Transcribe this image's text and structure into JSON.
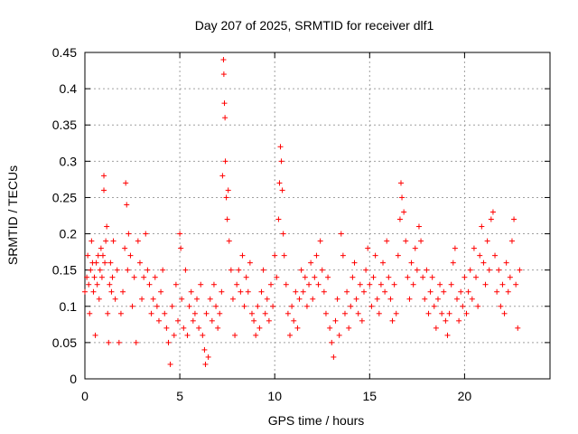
{
  "chart_data": {
    "type": "scatter",
    "title": "Day 207 of 2025, SRMTID for receiver dlf1",
    "xlabel": "GPS time / hours",
    "ylabel": "SRMTID / TECUs",
    "xlim": [
      0,
      24.5
    ],
    "ylim": [
      0,
      0.45
    ],
    "xticks": [
      0,
      5,
      10,
      15,
      20
    ],
    "xtick_labels": [
      "0",
      "5",
      "10",
      "15",
      "20"
    ],
    "yticks": [
      0,
      0.05,
      0.1,
      0.15,
      0.2,
      0.25,
      0.3,
      0.35,
      0.4,
      0.45
    ],
    "ytick_labels": [
      "0",
      "0.05",
      "0.1",
      "0.15",
      "0.2",
      "0.25",
      "0.3",
      "0.35",
      "0.4",
      "0.45"
    ],
    "grid": true,
    "marker": "plus",
    "color": "#ff0000",
    "series": [
      {
        "name": "SRMTID",
        "points": [
          [
            0.0,
            0.12
          ],
          [
            0.1,
            0.14
          ],
          [
            0.15,
            0.17
          ],
          [
            0.2,
            0.13
          ],
          [
            0.25,
            0.09
          ],
          [
            0.3,
            0.15
          ],
          [
            0.35,
            0.19
          ],
          [
            0.4,
            0.16
          ],
          [
            0.45,
            0.12
          ],
          [
            0.5,
            0.14
          ],
          [
            0.55,
            0.06
          ],
          [
            0.6,
            0.16
          ],
          [
            0.65,
            0.13
          ],
          [
            0.7,
            0.17
          ],
          [
            0.75,
            0.11
          ],
          [
            0.8,
            0.15
          ],
          [
            0.85,
            0.18
          ],
          [
            0.9,
            0.14
          ],
          [
            0.95,
            0.17
          ],
          [
            1.0,
            0.28
          ],
          [
            1.0,
            0.26
          ],
          [
            1.05,
            0.16
          ],
          [
            1.1,
            0.19
          ],
          [
            1.15,
            0.21
          ],
          [
            1.2,
            0.09
          ],
          [
            1.25,
            0.05
          ],
          [
            1.3,
            0.13
          ],
          [
            1.35,
            0.16
          ],
          [
            1.4,
            0.12
          ],
          [
            1.45,
            0.14
          ],
          [
            1.5,
            0.19
          ],
          [
            1.6,
            0.11
          ],
          [
            1.7,
            0.15
          ],
          [
            1.8,
            0.05
          ],
          [
            1.9,
            0.09
          ],
          [
            2.0,
            0.12
          ],
          [
            2.1,
            0.18
          ],
          [
            2.15,
            0.27
          ],
          [
            2.2,
            0.24
          ],
          [
            2.25,
            0.15
          ],
          [
            2.3,
            0.2
          ],
          [
            2.4,
            0.17
          ],
          [
            2.5,
            0.1
          ],
          [
            2.6,
            0.14
          ],
          [
            2.7,
            0.05
          ],
          [
            2.8,
            0.19
          ],
          [
            2.9,
            0.16
          ],
          [
            3.0,
            0.11
          ],
          [
            3.1,
            0.14
          ],
          [
            3.2,
            0.2
          ],
          [
            3.3,
            0.15
          ],
          [
            3.4,
            0.13
          ],
          [
            3.5,
            0.09
          ],
          [
            3.6,
            0.11
          ],
          [
            3.7,
            0.14
          ],
          [
            3.8,
            0.1
          ],
          [
            3.9,
            0.08
          ],
          [
            4.0,
            0.12
          ],
          [
            4.1,
            0.15
          ],
          [
            4.2,
            0.09
          ],
          [
            4.3,
            0.07
          ],
          [
            4.4,
            0.05
          ],
          [
            4.5,
            0.02
          ],
          [
            4.6,
            0.1
          ],
          [
            4.7,
            0.06
          ],
          [
            4.8,
            0.13
          ],
          [
            4.9,
            0.08
          ],
          [
            5.0,
            0.2
          ],
          [
            5.05,
            0.18
          ],
          [
            5.1,
            0.11
          ],
          [
            5.2,
            0.07
          ],
          [
            5.3,
            0.15
          ],
          [
            5.4,
            0.06
          ],
          [
            5.5,
            0.1
          ],
          [
            5.6,
            0.12
          ],
          [
            5.7,
            0.08
          ],
          [
            5.8,
            0.09
          ],
          [
            5.9,
            0.11
          ],
          [
            6.0,
            0.07
          ],
          [
            6.1,
            0.13
          ],
          [
            6.2,
            0.06
          ],
          [
            6.3,
            0.04
          ],
          [
            6.35,
            0.02
          ],
          [
            6.4,
            0.09
          ],
          [
            6.5,
            0.03
          ],
          [
            6.6,
            0.11
          ],
          [
            6.7,
            0.08
          ],
          [
            6.8,
            0.13
          ],
          [
            6.9,
            0.1
          ],
          [
            7.0,
            0.07
          ],
          [
            7.1,
            0.09
          ],
          [
            7.2,
            0.12
          ],
          [
            7.25,
            0.28
          ],
          [
            7.3,
            0.44
          ],
          [
            7.32,
            0.42
          ],
          [
            7.35,
            0.38
          ],
          [
            7.38,
            0.36
          ],
          [
            7.4,
            0.3
          ],
          [
            7.45,
            0.25
          ],
          [
            7.5,
            0.22
          ],
          [
            7.55,
            0.26
          ],
          [
            7.6,
            0.19
          ],
          [
            7.7,
            0.15
          ],
          [
            7.8,
            0.11
          ],
          [
            7.9,
            0.06
          ],
          [
            8.0,
            0.13
          ],
          [
            8.1,
            0.15
          ],
          [
            8.2,
            0.12
          ],
          [
            8.3,
            0.17
          ],
          [
            8.4,
            0.1
          ],
          [
            8.5,
            0.14
          ],
          [
            8.6,
            0.12
          ],
          [
            8.7,
            0.16
          ],
          [
            8.8,
            0.09
          ],
          [
            8.9,
            0.08
          ],
          [
            9.0,
            0.06
          ],
          [
            9.1,
            0.1
          ],
          [
            9.2,
            0.07
          ],
          [
            9.3,
            0.12
          ],
          [
            9.4,
            0.15
          ],
          [
            9.5,
            0.09
          ],
          [
            9.6,
            0.11
          ],
          [
            9.7,
            0.08
          ],
          [
            9.8,
            0.13
          ],
          [
            9.9,
            0.1
          ],
          [
            10.0,
            0.17
          ],
          [
            10.1,
            0.14
          ],
          [
            10.2,
            0.22
          ],
          [
            10.25,
            0.27
          ],
          [
            10.3,
            0.32
          ],
          [
            10.35,
            0.3
          ],
          [
            10.4,
            0.26
          ],
          [
            10.45,
            0.2
          ],
          [
            10.5,
            0.17
          ],
          [
            10.6,
            0.13
          ],
          [
            10.7,
            0.09
          ],
          [
            10.8,
            0.06
          ],
          [
            10.9,
            0.1
          ],
          [
            11.0,
            0.08
          ],
          [
            11.1,
            0.12
          ],
          [
            11.2,
            0.07
          ],
          [
            11.3,
            0.11
          ],
          [
            11.4,
            0.15
          ],
          [
            11.5,
            0.12
          ],
          [
            11.6,
            0.14
          ],
          [
            11.7,
            0.1
          ],
          [
            11.8,
            0.13
          ],
          [
            11.9,
            0.16
          ],
          [
            12.0,
            0.11
          ],
          [
            12.1,
            0.14
          ],
          [
            12.2,
            0.17
          ],
          [
            12.3,
            0.13
          ],
          [
            12.4,
            0.19
          ],
          [
            12.5,
            0.15
          ],
          [
            12.6,
            0.12
          ],
          [
            12.7,
            0.09
          ],
          [
            12.8,
            0.14
          ],
          [
            12.9,
            0.07
          ],
          [
            13.0,
            0.05
          ],
          [
            13.1,
            0.03
          ],
          [
            13.2,
            0.08
          ],
          [
            13.3,
            0.11
          ],
          [
            13.4,
            0.06
          ],
          [
            13.5,
            0.2
          ],
          [
            13.6,
            0.17
          ],
          [
            13.7,
            0.09
          ],
          [
            13.8,
            0.12
          ],
          [
            13.9,
            0.07
          ],
          [
            14.0,
            0.1
          ],
          [
            14.1,
            0.14
          ],
          [
            14.2,
            0.16
          ],
          [
            14.3,
            0.11
          ],
          [
            14.4,
            0.09
          ],
          [
            14.5,
            0.13
          ],
          [
            14.6,
            0.08
          ],
          [
            14.7,
            0.12
          ],
          [
            14.8,
            0.15
          ],
          [
            14.9,
            0.18
          ],
          [
            15.0,
            0.13
          ],
          [
            15.1,
            0.1
          ],
          [
            15.2,
            0.14
          ],
          [
            15.3,
            0.17
          ],
          [
            15.4,
            0.11
          ],
          [
            15.5,
            0.09
          ],
          [
            15.6,
            0.13
          ],
          [
            15.7,
            0.16
          ],
          [
            15.8,
            0.12
          ],
          [
            15.9,
            0.19
          ],
          [
            16.0,
            0.14
          ],
          [
            16.1,
            0.11
          ],
          [
            16.2,
            0.08
          ],
          [
            16.3,
            0.13
          ],
          [
            16.4,
            0.09
          ],
          [
            16.5,
            0.17
          ],
          [
            16.6,
            0.22
          ],
          [
            16.65,
            0.27
          ],
          [
            16.7,
            0.25
          ],
          [
            16.8,
            0.23
          ],
          [
            16.9,
            0.19
          ],
          [
            17.0,
            0.14
          ],
          [
            17.1,
            0.11
          ],
          [
            17.2,
            0.16
          ],
          [
            17.3,
            0.13
          ],
          [
            17.4,
            0.18
          ],
          [
            17.5,
            0.15
          ],
          [
            17.6,
            0.21
          ],
          [
            17.7,
            0.19
          ],
          [
            17.8,
            0.14
          ],
          [
            17.9,
            0.11
          ],
          [
            18.0,
            0.15
          ],
          [
            18.1,
            0.09
          ],
          [
            18.2,
            0.12
          ],
          [
            18.3,
            0.14
          ],
          [
            18.4,
            0.1
          ],
          [
            18.5,
            0.07
          ],
          [
            18.6,
            0.11
          ],
          [
            18.7,
            0.13
          ],
          [
            18.8,
            0.09
          ],
          [
            18.9,
            0.12
          ],
          [
            19.0,
            0.08
          ],
          [
            19.1,
            0.06
          ],
          [
            19.2,
            0.09
          ],
          [
            19.3,
            0.13
          ],
          [
            19.4,
            0.16
          ],
          [
            19.5,
            0.18
          ],
          [
            19.6,
            0.11
          ],
          [
            19.7,
            0.08
          ],
          [
            19.8,
            0.12
          ],
          [
            19.9,
            0.1
          ],
          [
            20.0,
            0.14
          ],
          [
            20.1,
            0.09
          ],
          [
            20.2,
            0.12
          ],
          [
            20.3,
            0.15
          ],
          [
            20.4,
            0.11
          ],
          [
            20.5,
            0.18
          ],
          [
            20.6,
            0.14
          ],
          [
            20.7,
            0.1
          ],
          [
            20.8,
            0.17
          ],
          [
            20.9,
            0.21
          ],
          [
            21.0,
            0.16
          ],
          [
            21.1,
            0.13
          ],
          [
            21.2,
            0.19
          ],
          [
            21.3,
            0.15
          ],
          [
            21.4,
            0.22
          ],
          [
            21.5,
            0.23
          ],
          [
            21.6,
            0.17
          ],
          [
            21.7,
            0.12
          ],
          [
            21.8,
            0.15
          ],
          [
            21.9,
            0.1
          ],
          [
            22.0,
            0.13
          ],
          [
            22.1,
            0.09
          ],
          [
            22.2,
            0.16
          ],
          [
            22.3,
            0.12
          ],
          [
            22.4,
            0.14
          ],
          [
            22.5,
            0.19
          ],
          [
            22.6,
            0.22
          ],
          [
            22.7,
            0.13
          ],
          [
            22.8,
            0.07
          ],
          [
            22.9,
            0.15
          ]
        ]
      }
    ]
  }
}
